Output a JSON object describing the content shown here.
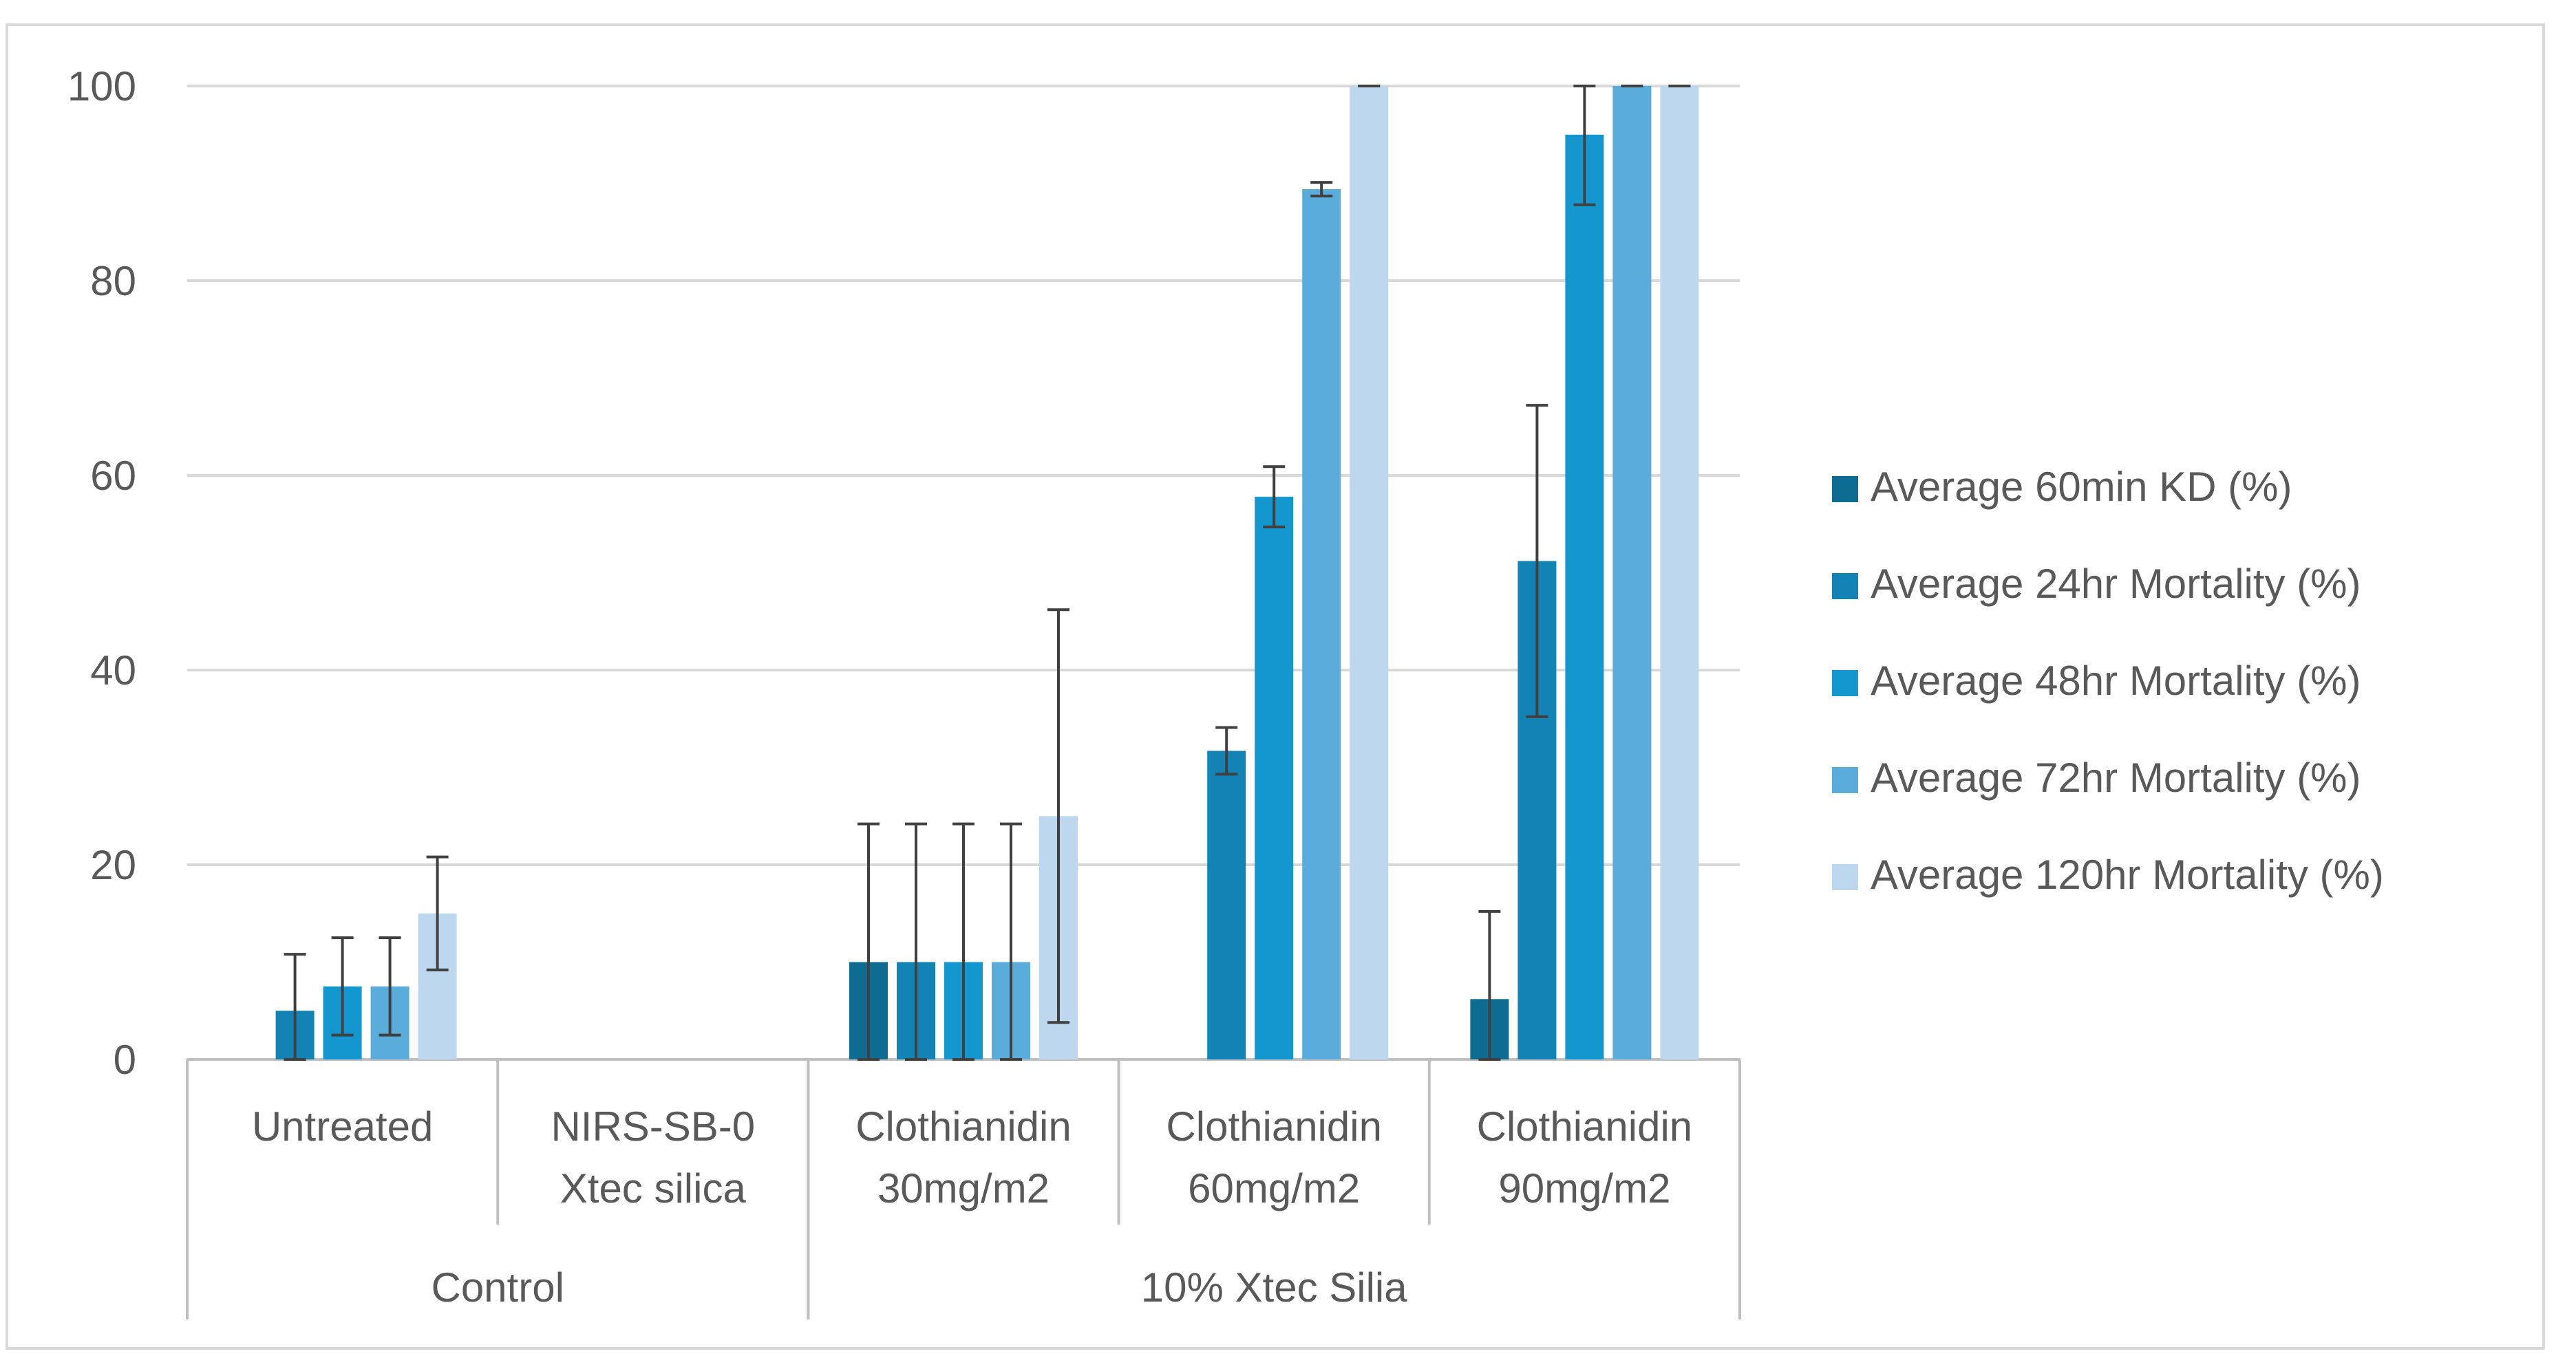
{
  "chart_data": {
    "type": "bar",
    "title": "",
    "xlabel": "",
    "ylabel": "",
    "ylim": [
      0,
      100
    ],
    "yticks": [
      0,
      20,
      40,
      60,
      80,
      100
    ],
    "grid": true,
    "legend_position": "right",
    "categories": [
      {
        "lines": [
          "Untreated"
        ],
        "group": "Control"
      },
      {
        "lines": [
          "NIRS-SB-0",
          "Xtec silica"
        ],
        "group": "Control"
      },
      {
        "lines": [
          "Clothianidin",
          "30mg/m2"
        ],
        "group": "10% Xtec Silia"
      },
      {
        "lines": [
          "Clothianidin",
          "60mg/m2"
        ],
        "group": "10% Xtec Silia"
      },
      {
        "lines": [
          "Clothianidin",
          "90mg/m2"
        ],
        "group": "10% Xtec Silia"
      }
    ],
    "groups": [
      {
        "label": "Control",
        "span": [
          0,
          1
        ]
      },
      {
        "label": "10% Xtec Silia",
        "span": [
          2,
          4
        ]
      }
    ],
    "series": [
      {
        "name": "Average 60min KD (%)",
        "color": "#0e6c93",
        "values": [
          0,
          0,
          10,
          0,
          6.2
        ],
        "errors": [
          0,
          0,
          14.2,
          0,
          9
        ]
      },
      {
        "name": "Average 24hr Mortality (%)",
        "color": "#1283b4",
        "values": [
          5,
          0,
          10,
          31.7,
          51.2
        ],
        "errors": [
          5.8,
          0,
          14.2,
          2.4,
          16
        ]
      },
      {
        "name": "Average 48hr Mortality (%)",
        "color": "#1497cf",
        "values": [
          7.5,
          0,
          10,
          57.8,
          95
        ],
        "errors": [
          5,
          0,
          14.2,
          3.1,
          7.2
        ]
      },
      {
        "name": "Average 72hr Mortality (%)",
        "color": "#5aacdb",
        "values": [
          7.5,
          0,
          10,
          89.4,
          100
        ],
        "errors": [
          5,
          0,
          14.2,
          0.7,
          0
        ]
      },
      {
        "name": "Average 120hr Mortality (%)",
        "color": "#bdd8ee",
        "values": [
          15,
          0,
          25,
          100,
          100
        ],
        "errors": [
          5.8,
          0,
          21.2,
          0,
          0
        ]
      }
    ]
  }
}
